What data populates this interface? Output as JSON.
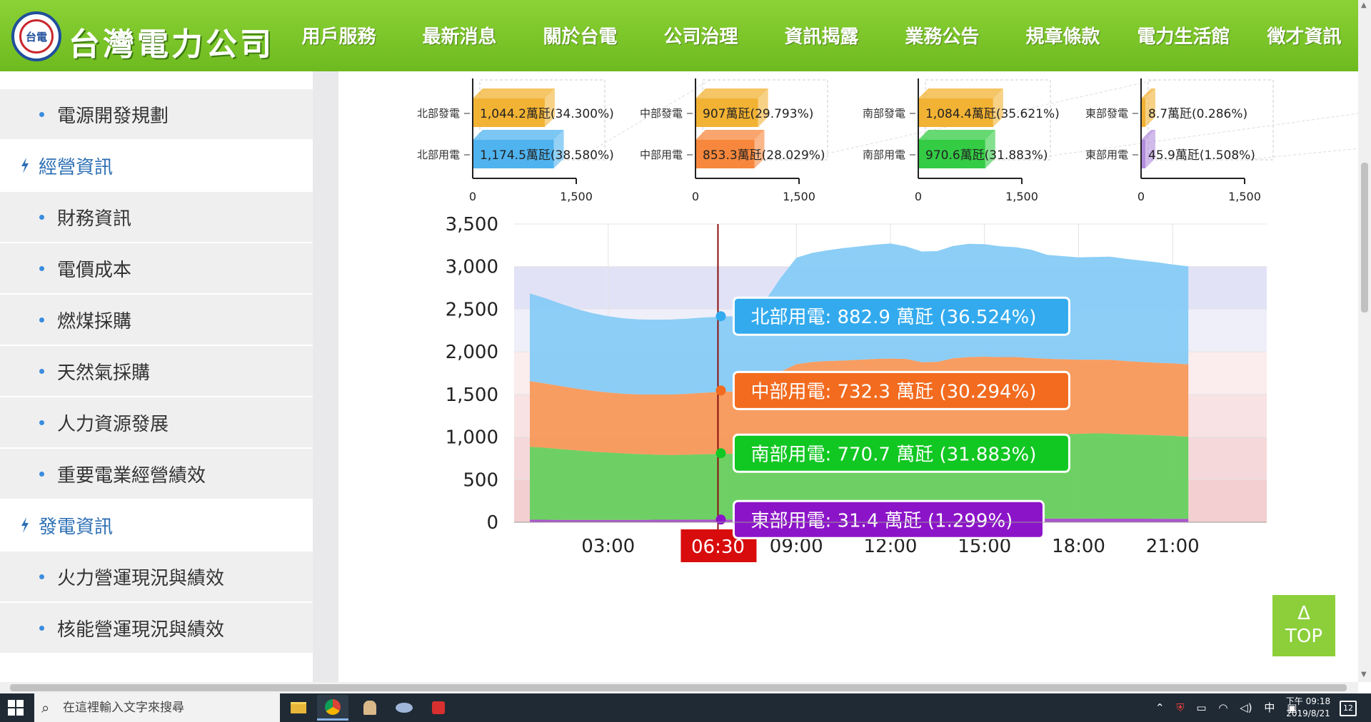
{
  "header": {
    "brand": "台灣電力公司",
    "logo_text": "台電",
    "nav": [
      "用戶服務",
      "最新消息",
      "關於台電",
      "公司治理",
      "資訊揭露",
      "業務公告",
      "規章條款",
      "電力生活館",
      "徵才資訊"
    ],
    "active_nav": "資訊揭露"
  },
  "sidebar": {
    "items": [
      {
        "label": "電源開發規劃",
        "type": "sub"
      },
      {
        "label": "經營資訊",
        "type": "main"
      },
      {
        "label": "財務資訊",
        "type": "sub"
      },
      {
        "label": "電價成本",
        "type": "sub"
      },
      {
        "label": "燃煤採購",
        "type": "sub"
      },
      {
        "label": "天然氣採購",
        "type": "sub"
      },
      {
        "label": "人力資源發展",
        "type": "sub"
      },
      {
        "label": "重要電業經營績效",
        "type": "sub"
      },
      {
        "label": "發電資訊",
        "type": "main"
      },
      {
        "label": "火力營運現況與績效",
        "type": "sub"
      },
      {
        "label": "核能營運現況與績效",
        "type": "sub"
      }
    ]
  },
  "chart_data": [
    {
      "type": "bar",
      "name": "north",
      "categories": [
        "北部發電",
        "北部用電"
      ],
      "values": [
        1044.2,
        1174.5
      ],
      "labels": [
        "1,044.2萬瓩(34.300%)",
        "1,174.5萬瓩(38.580%)"
      ],
      "colors": [
        "#f2b233",
        "#4fb3ef"
      ],
      "xticks": [
        "0",
        "1,500"
      ],
      "xlim": [
        0,
        2000
      ]
    },
    {
      "type": "bar",
      "name": "central",
      "categories": [
        "中部發電",
        "中部用電"
      ],
      "values": [
        907,
        853.3
      ],
      "labels": [
        "907萬瓩(29.793%)",
        "853.3萬瓩(28.029%)"
      ],
      "colors": [
        "#f2b233",
        "#f7873c"
      ],
      "xticks": [
        "0",
        "1,500"
      ],
      "xlim": [
        0,
        2000
      ]
    },
    {
      "type": "bar",
      "name": "south",
      "categories": [
        "南部發電",
        "南部用電"
      ],
      "values": [
        1084.4,
        970.6
      ],
      "labels": [
        "1,084.4萬瓩(35.621%)",
        "970.6萬瓩(31.883%)"
      ],
      "colors": [
        "#f2b233",
        "#33cc44"
      ],
      "xticks": [
        "0",
        "1,500"
      ],
      "xlim": [
        0,
        2000
      ]
    },
    {
      "type": "bar",
      "name": "east",
      "categories": [
        "東部發電",
        "東部用電"
      ],
      "values": [
        8.7,
        45.9
      ],
      "labels": [
        "8.7萬瓩(0.286%)",
        "45.9萬瓩(1.508%)"
      ],
      "colors": [
        "#f2b233",
        "#b28ede"
      ],
      "xticks": [
        "0",
        "1,500"
      ],
      "xlim": [
        0,
        2000
      ]
    },
    {
      "type": "area",
      "name": "load",
      "stacked": true,
      "x": [
        0.5,
        1,
        1.5,
        2,
        2.5,
        3,
        3.5,
        4,
        4.5,
        5,
        5.5,
        6,
        6.5,
        7,
        7.5,
        8,
        8.5,
        9,
        9.5,
        10,
        10.5,
        11,
        11.5,
        12,
        12.5,
        13,
        13.5,
        14,
        14.5,
        15,
        15.5,
        16,
        16.5,
        17,
        17.5,
        18,
        18.5,
        19,
        19.5,
        20,
        20.5,
        21,
        21.5
      ],
      "series": [
        {
          "name": "東部用電",
          "color": "#a64ecb",
          "values": [
            30,
            29,
            28,
            28,
            28,
            28,
            28,
            28,
            29,
            29,
            30,
            31,
            31,
            32,
            34,
            36,
            38,
            40,
            41,
            42,
            42,
            42,
            42,
            41,
            42,
            43,
            43,
            43,
            43,
            43,
            43,
            43,
            43,
            43,
            43,
            43,
            43,
            42,
            42,
            42,
            41,
            40,
            39
          ]
        },
        {
          "name": "南部用電",
          "color": "#66d05e",
          "values": [
            855,
            845,
            830,
            815,
            800,
            790,
            780,
            772,
            765,
            760,
            762,
            766,
            770,
            772,
            775,
            830,
            880,
            925,
            940,
            945,
            950,
            955,
            960,
            965,
            970,
            965,
            960,
            975,
            985,
            990,
            990,
            990,
            985,
            980,
            990,
            995,
            1000,
            1000,
            990,
            985,
            980,
            975,
            965
          ]
        },
        {
          "name": "中部用電",
          "color": "#f7995a",
          "values": [
            770,
            755,
            740,
            725,
            715,
            705,
            700,
            700,
            705,
            710,
            715,
            722,
            728,
            732,
            733,
            780,
            850,
            890,
            900,
            905,
            905,
            910,
            915,
            915,
            905,
            870,
            880,
            905,
            910,
            910,
            905,
            905,
            900,
            895,
            880,
            870,
            865,
            865,
            860,
            855,
            850,
            850,
            850
          ]
        },
        {
          "name": "北部用電",
          "color": "#86cbf5",
          "values": [
            1030,
            1000,
            965,
            935,
            910,
            895,
            885,
            880,
            878,
            880,
            882,
            883,
            882,
            883,
            880,
            950,
            1100,
            1250,
            1280,
            1300,
            1320,
            1330,
            1340,
            1350,
            1320,
            1300,
            1300,
            1320,
            1330,
            1320,
            1300,
            1290,
            1270,
            1220,
            1210,
            1200,
            1205,
            1210,
            1200,
            1190,
            1180,
            1160,
            1150
          ]
        }
      ],
      "xticks": [
        "03:00",
        "09:00",
        "12:00",
        "15:00",
        "18:00",
        "21:00"
      ],
      "xtick_values": [
        3,
        9,
        12,
        15,
        18,
        21
      ],
      "yticks": [
        "0",
        "500",
        "1,000",
        "1,500",
        "2,000",
        "2,500",
        "3,000",
        "3,500"
      ],
      "ylim": [
        0,
        3500
      ],
      "xlim": [
        0,
        24
      ],
      "cursor": {
        "time": "06:30",
        "x": 6.5
      },
      "bands": [
        {
          "from": 2500,
          "to": 3000,
          "color": "#e2e2f7"
        },
        {
          "from": 2000,
          "to": 2500,
          "color": "#efeffa"
        },
        {
          "from": 1500,
          "to": 2000,
          "color": "#fbeced"
        },
        {
          "from": 1000,
          "to": 1500,
          "color": "#f8e2e3"
        },
        {
          "from": 500,
          "to": 1000,
          "color": "#f5d8da"
        },
        {
          "from": 0,
          "to": 500,
          "color": "#f3cfd1"
        }
      ],
      "tooltips": [
        {
          "text": "北部用電: 882.9 萬瓩 (36.524%)",
          "color": "#33aaee",
          "y": 2418
        },
        {
          "text": "中部用電: 732.3 萬瓩 (30.294%)",
          "color": "#f26b1f",
          "y": 1546
        },
        {
          "text": "南部用電: 770.7 萬瓩 (31.883%)",
          "color": "#11c722",
          "y": 810
        },
        {
          "text": "東部用電: 31.4 萬瓩 (1.299%)",
          "color": "#8c14c8",
          "y": 31
        }
      ]
    }
  ],
  "topbtn": {
    "arrow": "Δ",
    "label": "TOP"
  },
  "taskbar": {
    "search_placeholder": "在這裡輸入文字來搜尋",
    "ime": "中",
    "time": "下午 09:18",
    "date": "2019/8/21",
    "notifications": "12"
  }
}
